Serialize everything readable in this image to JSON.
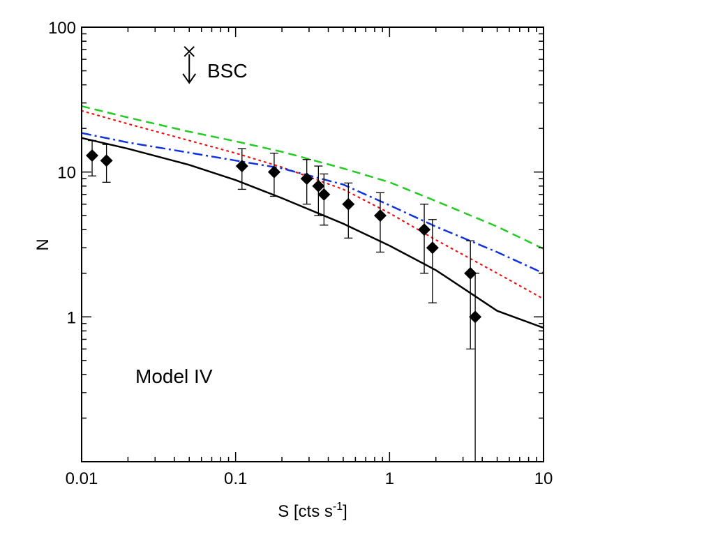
{
  "chart_data": {
    "type": "scatter",
    "title": "",
    "xlabel": "S [cts s",
    "xlabel_sup": "-1",
    "xlabel_end": "]",
    "ylabel": "N",
    "xscale": "log",
    "yscale": "log",
    "xlim": [
      0.01,
      10
    ],
    "ylim": [
      0.1,
      100
    ],
    "x_ticks": [
      {
        "value": 0.01,
        "label": "0.01"
      },
      {
        "value": 0.1,
        "label": "0.1"
      },
      {
        "value": 1,
        "label": "1"
      },
      {
        "value": 10,
        "label": "10"
      }
    ],
    "y_ticks": [
      {
        "value": 1,
        "label": "1"
      },
      {
        "value": 10,
        "label": "10"
      },
      {
        "value": 100,
        "label": "100"
      }
    ],
    "annotations": {
      "model": "Model  IV",
      "bsc": "BSC",
      "bsc_limit": {
        "x": 0.05,
        "y": 68
      }
    },
    "points": [
      {
        "x": 0.0117,
        "y": 13,
        "lo": 9.4,
        "hi": 16.5
      },
      {
        "x": 0.0145,
        "y": 12,
        "lo": 8.5,
        "hi": 15.5
      },
      {
        "x": 0.11,
        "y": 11,
        "lo": 7.6,
        "hi": 14.5
      },
      {
        "x": 0.178,
        "y": 10,
        "lo": 6.8,
        "hi": 13.5
      },
      {
        "x": 0.29,
        "y": 9,
        "lo": 6.0,
        "hi": 12.2
      },
      {
        "x": 0.345,
        "y": 8,
        "lo": 5.0,
        "hi": 11.0
      },
      {
        "x": 0.375,
        "y": 7,
        "lo": 4.3,
        "hi": 9.7
      },
      {
        "x": 0.54,
        "y": 6,
        "lo": 3.5,
        "hi": 8.4
      },
      {
        "x": 0.87,
        "y": 5,
        "lo": 2.8,
        "hi": 7.2
      },
      {
        "x": 1.68,
        "y": 4,
        "lo": 2.0,
        "hi": 6.0
      },
      {
        "x": 1.9,
        "y": 3,
        "lo": 1.25,
        "hi": 4.7
      },
      {
        "x": 3.35,
        "y": 2,
        "lo": 0.6,
        "hi": 3.35
      },
      {
        "x": 3.6,
        "y": 1,
        "lo": 0.1,
        "hi": 2.0
      }
    ],
    "series": [
      {
        "name": "black-solid",
        "color": "#000000",
        "dash": "",
        "points": [
          [
            0.01,
            17.2
          ],
          [
            0.02,
            14.5
          ],
          [
            0.05,
            11.2
          ],
          [
            0.1,
            8.8
          ],
          [
            0.2,
            6.6
          ],
          [
            0.5,
            4.4
          ],
          [
            1,
            3.1
          ],
          [
            2,
            2.1
          ],
          [
            5,
            1.1
          ],
          [
            10,
            0.84
          ]
        ]
      },
      {
        "name": "green-dashed",
        "color": "#22cc22",
        "dash": "12,7",
        "points": [
          [
            0.01,
            28.5
          ],
          [
            0.02,
            23.8
          ],
          [
            0.05,
            19.0
          ],
          [
            0.1,
            16.3
          ],
          [
            0.2,
            13.8
          ],
          [
            0.5,
            10.6
          ],
          [
            1,
            8.5
          ],
          [
            2,
            6.3
          ],
          [
            5,
            4.2
          ],
          [
            10,
            2.95
          ]
        ]
      },
      {
        "name": "red-dotted",
        "color": "#ee1111",
        "dash": "2,6",
        "points": [
          [
            0.01,
            26.5
          ],
          [
            0.02,
            21.5
          ],
          [
            0.05,
            16.5
          ],
          [
            0.1,
            13.5
          ],
          [
            0.2,
            10.8
          ],
          [
            0.5,
            7.6
          ],
          [
            1,
            5.2
          ],
          [
            2,
            3.4
          ],
          [
            5,
            2.0
          ],
          [
            10,
            1.33
          ]
        ]
      },
      {
        "name": "blue-dashdot",
        "color": "#1133dd",
        "dash": "14,5,3,5",
        "points": [
          [
            0.01,
            18.6
          ],
          [
            0.02,
            16.0
          ],
          [
            0.05,
            13.6
          ],
          [
            0.1,
            12.0
          ],
          [
            0.2,
            10.6
          ],
          [
            0.5,
            8.2
          ],
          [
            1,
            5.9
          ],
          [
            2,
            4.2
          ],
          [
            5,
            2.8
          ],
          [
            10,
            2.0
          ]
        ]
      }
    ]
  }
}
